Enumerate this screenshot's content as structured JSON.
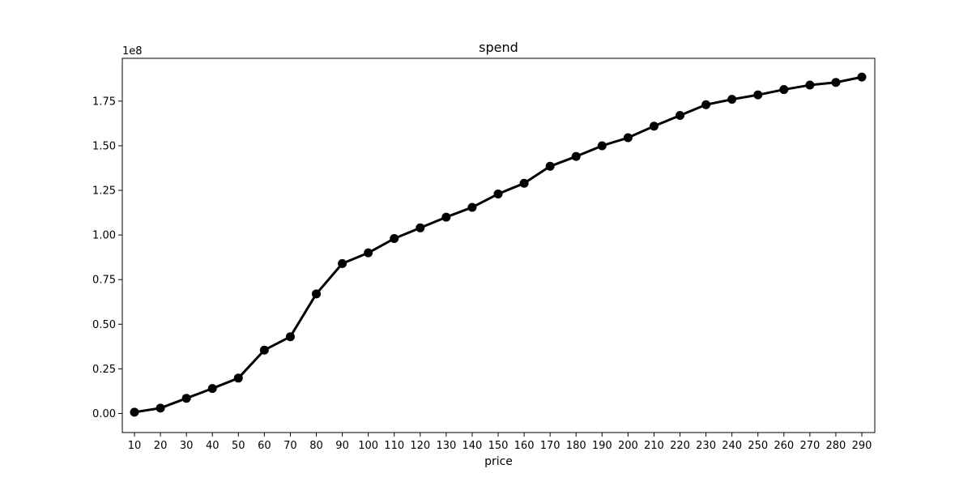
{
  "chart_data": {
    "type": "line",
    "title": "spend",
    "xlabel": "price",
    "ylabel": "",
    "y_offset_label": "1e8",
    "categories": [
      "10",
      "20",
      "30",
      "40",
      "50",
      "60",
      "70",
      "80",
      "90",
      "100",
      "110",
      "120",
      "130",
      "140",
      "150",
      "160",
      "170",
      "180",
      "190",
      "200",
      "210",
      "220",
      "230",
      "240",
      "250",
      "260",
      "270",
      "280",
      "290"
    ],
    "series": [
      {
        "values": [
          0.007,
          0.03,
          0.085,
          0.14,
          0.198,
          0.355,
          0.43,
          0.67,
          0.84,
          0.9,
          0.98,
          1.04,
          1.1,
          1.155,
          1.23,
          1.29,
          1.385,
          1.44,
          1.5,
          1.545,
          1.61,
          1.67,
          1.73,
          1.76,
          1.785,
          1.815,
          1.84,
          1.855,
          1.885
        ],
        "color": "#000000"
      }
    ],
    "y_ticks": [
      "0.00",
      "0.25",
      "0.50",
      "0.75",
      "1.00",
      "1.25",
      "1.50",
      "1.75"
    ],
    "y_tick_values": [
      0,
      0.25,
      0.5,
      0.75,
      1.0,
      1.25,
      1.5,
      1.75
    ],
    "ylim": [
      -0.107,
      1.99
    ],
    "grid": false,
    "legend": "none"
  }
}
